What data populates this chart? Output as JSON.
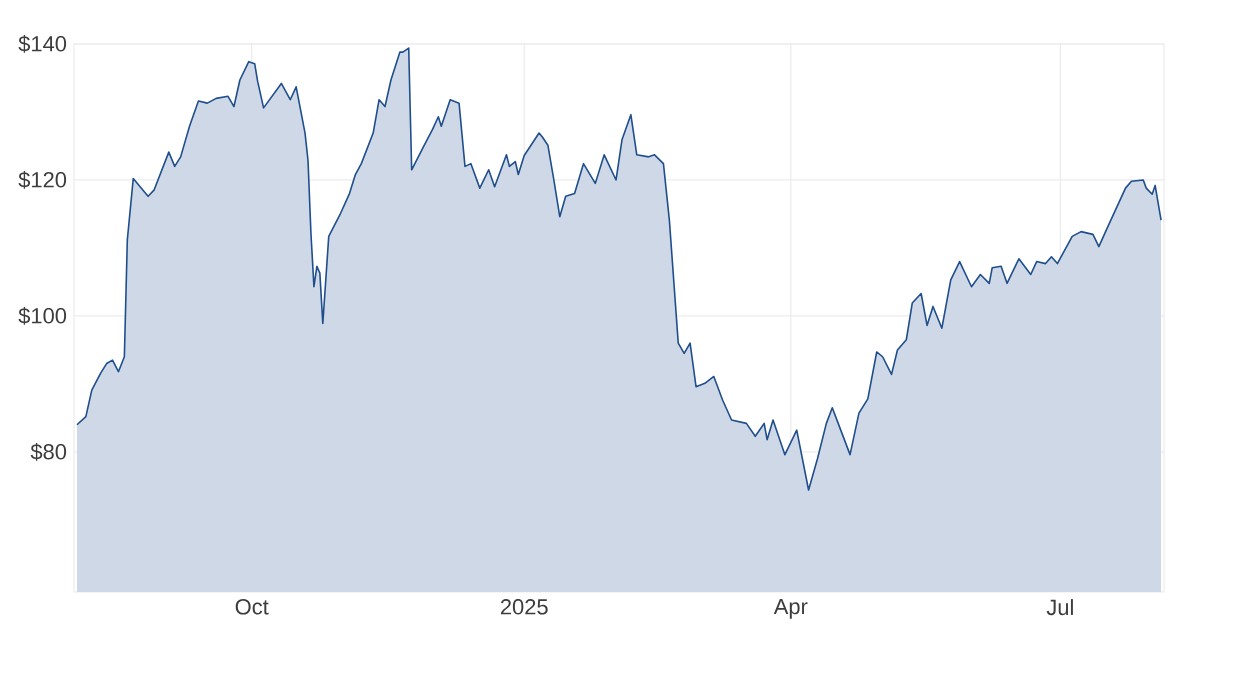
{
  "chart_data": {
    "type": "area",
    "color": "#1f4e8c",
    "grid": true,
    "xlim": [
      "2024-08-02",
      "2025-08-05"
    ],
    "xticks": [
      {
        "value": "2024-10-01",
        "label": "Oct"
      },
      {
        "value": "2025-01-01",
        "label": "2025"
      },
      {
        "value": "2025-04-01",
        "label": "Apr"
      },
      {
        "value": "2025-07-01",
        "label": "Jul"
      }
    ],
    "ylim": [
      59.4,
      140
    ],
    "yticks": [
      {
        "value": 80,
        "label": "$80"
      },
      {
        "value": 100,
        "label": "$100"
      },
      {
        "value": 120,
        "label": "$120"
      },
      {
        "value": 140,
        "label": "$140"
      }
    ],
    "x": [
      "2024-08-03",
      "2024-08-06",
      "2024-08-08",
      "2024-08-11",
      "2024-08-13",
      "2024-08-15",
      "2024-08-17",
      "2024-08-19",
      "2024-08-20",
      "2024-08-22",
      "2024-08-27",
      "2024-08-29",
      "2024-09-03",
      "2024-09-05",
      "2024-09-07",
      "2024-09-10",
      "2024-09-13",
      "2024-09-16",
      "2024-09-19",
      "2024-09-23",
      "2024-09-25",
      "2024-09-27",
      "2024-09-30",
      "2024-10-02",
      "2024-10-03",
      "2024-10-05",
      "2024-10-11",
      "2024-10-14",
      "2024-10-16",
      "2024-10-19",
      "2024-10-20",
      "2024-10-21",
      "2024-10-22",
      "2024-10-23",
      "2024-10-24",
      "2024-10-25",
      "2024-10-27",
      "2024-10-31",
      "2024-11-03",
      "2024-11-05",
      "2024-11-07",
      "2024-11-11",
      "2024-11-13",
      "2024-11-15",
      "2024-11-17",
      "2024-11-20",
      "2024-11-21",
      "2024-11-23",
      "2024-11-24",
      "2024-11-28",
      "2024-12-01",
      "2024-12-03",
      "2024-12-04",
      "2024-12-07",
      "2024-12-10",
      "2024-12-12",
      "2024-12-14",
      "2024-12-17",
      "2024-12-20",
      "2024-12-22",
      "2024-12-26",
      "2024-12-27",
      "2024-12-29",
      "2024-12-30",
      "2025-01-01",
      "2025-01-06",
      "2025-01-07",
      "2025-01-09",
      "2025-01-11",
      "2025-01-13",
      "2025-01-15",
      "2025-01-18",
      "2025-01-21",
      "2025-01-25",
      "2025-01-28",
      "2025-02-01",
      "2025-02-03",
      "2025-02-06",
      "2025-02-08",
      "2025-02-12",
      "2025-02-14",
      "2025-02-17",
      "2025-02-19",
      "2025-02-22",
      "2025-02-24",
      "2025-02-26",
      "2025-02-28",
      "2025-03-03",
      "2025-03-06",
      "2025-03-09",
      "2025-03-12",
      "2025-03-17",
      "2025-03-20",
      "2025-03-23",
      "2025-03-24",
      "2025-03-26",
      "2025-03-30",
      "2025-04-03",
      "2025-04-07",
      "2025-04-10",
      "2025-04-13",
      "2025-04-15",
      "2025-04-17",
      "2025-04-21",
      "2025-04-24",
      "2025-04-27",
      "2025-04-30",
      "2025-05-02",
      "2025-05-05",
      "2025-05-07",
      "2025-05-10",
      "2025-05-12",
      "2025-05-15",
      "2025-05-17",
      "2025-05-19",
      "2025-05-22",
      "2025-05-25",
      "2025-05-28",
      "2025-06-01",
      "2025-06-04",
      "2025-06-07",
      "2025-06-08",
      "2025-06-11",
      "2025-06-13",
      "2025-06-17",
      "2025-06-21",
      "2025-06-23",
      "2025-06-26",
      "2025-06-28",
      "2025-06-30",
      "2025-07-05",
      "2025-07-08",
      "2025-07-12",
      "2025-07-14",
      "2025-07-17",
      "2025-07-23",
      "2025-07-25",
      "2025-07-29",
      "2025-07-30",
      "2025-08-01",
      "2025-08-02",
      "2025-08-04"
    ],
    "values": [
      84.0,
      85.2,
      89.1,
      91.6,
      93.0,
      93.5,
      91.8,
      94.0,
      111.2,
      120.2,
      117.6,
      118.5,
      124.1,
      122.0,
      123.4,
      127.9,
      131.6,
      131.3,
      132.0,
      132.3,
      130.8,
      134.7,
      137.4,
      137.1,
      134.5,
      130.6,
      134.2,
      131.8,
      133.7,
      126.9,
      122.9,
      112.1,
      104.3,
      107.3,
      106.3,
      98.9,
      111.7,
      115.1,
      118.0,
      120.8,
      122.4,
      126.9,
      131.8,
      130.8,
      134.7,
      138.8,
      138.8,
      139.4,
      121.5,
      124.9,
      127.4,
      129.3,
      127.9,
      131.8,
      131.3,
      122.0,
      122.4,
      118.8,
      121.5,
      119.0,
      123.7,
      122.0,
      122.7,
      120.8,
      123.6,
      126.9,
      126.4,
      125.1,
      120.0,
      114.6,
      117.6,
      118.0,
      122.4,
      119.5,
      123.7,
      120.0,
      125.9,
      129.6,
      123.7,
      123.4,
      123.7,
      122.4,
      114.1,
      96.0,
      94.5,
      96.0,
      89.6,
      90.1,
      91.1,
      87.6,
      84.7,
      84.2,
      82.3,
      84.2,
      81.8,
      84.7,
      79.6,
      83.2,
      74.4,
      79.0,
      84.2,
      86.5,
      84.2,
      79.6,
      85.7,
      87.8,
      94.7,
      94.0,
      91.4,
      95.0,
      96.5,
      101.9,
      103.3,
      98.6,
      101.4,
      98.2,
      105.3,
      108.0,
      104.3,
      106.1,
      104.8,
      107.1,
      107.3,
      104.8,
      108.4,
      106.1,
      108.0,
      107.7,
      108.7,
      107.7,
      111.7,
      112.4,
      112.0,
      110.2,
      113.1,
      118.8,
      119.8,
      120.0,
      118.8,
      117.9,
      119.2,
      114.1
    ]
  }
}
